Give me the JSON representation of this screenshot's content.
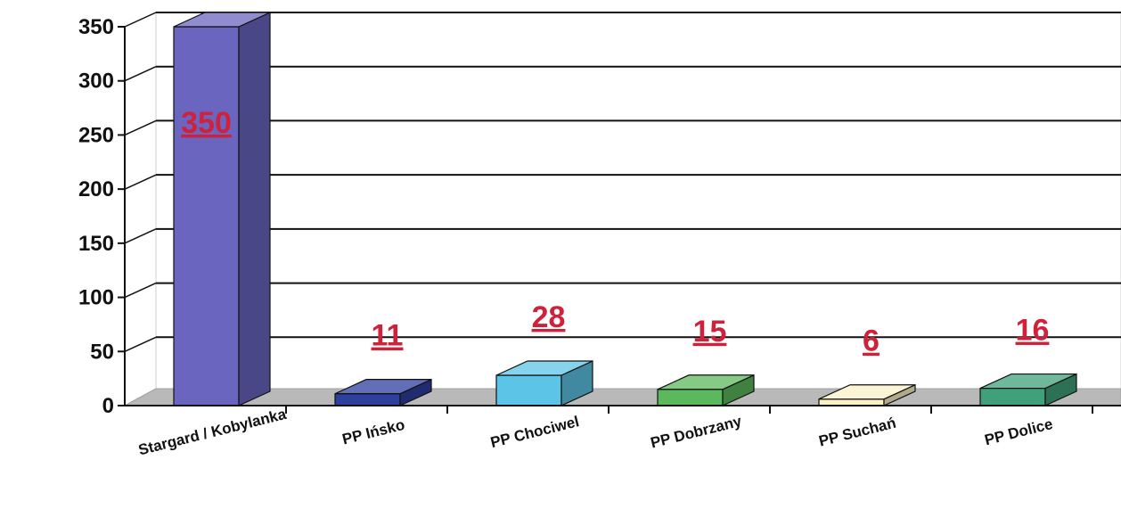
{
  "chart_data": {
    "type": "bar",
    "categories": [
      "Stargard / Kobylanka",
      "PP Ińsko",
      "PP Chociwel",
      "PP Dobrzany",
      "PP Suchań",
      "PP Dolice"
    ],
    "values": [
      350,
      11,
      28,
      15,
      6,
      16
    ],
    "data_labels": [
      "350",
      "11",
      "28",
      "15",
      "6",
      "16"
    ],
    "yticks": [
      "0",
      "50",
      "100",
      "150",
      "200",
      "250",
      "300",
      "350"
    ],
    "ylim": [
      0,
      350
    ],
    "grid": true,
    "three_d": true,
    "legend": "none",
    "colors": [
      "#6a66c0",
      "#2e3f9e",
      "#5cc4e6",
      "#5cb85c",
      "#fbf1c7",
      "#3fa07a"
    ],
    "label_color": "#d0213b"
  }
}
